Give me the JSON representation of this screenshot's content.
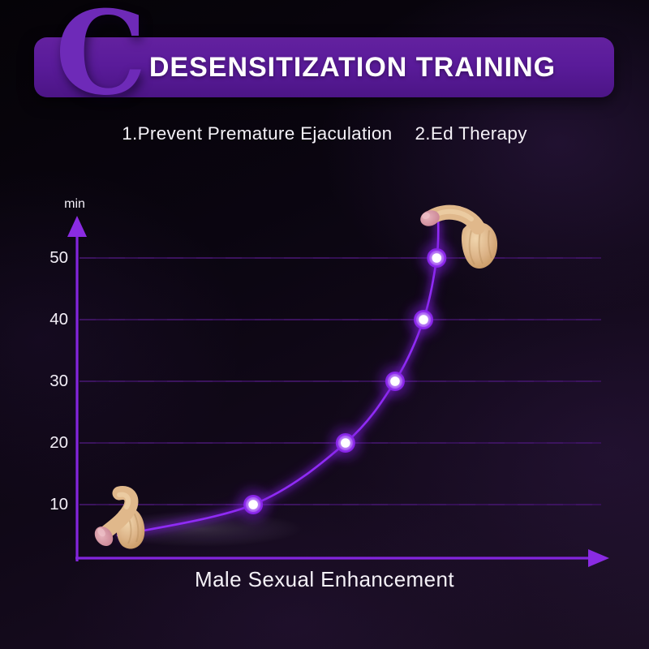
{
  "banner": {
    "title": "DESENSITIZATION TRAINING"
  },
  "subtitle": {
    "item1": "1.Prevent Premature Ejaculation",
    "item2": "2.Ed Therapy"
  },
  "decor": {
    "ribbon_glyph": "C"
  },
  "icons": {
    "product_start": "flaccid-product-photo",
    "product_end": "erect-product-photo"
  },
  "chart_data": {
    "type": "line",
    "title": "DESENSITIZATION TRAINING",
    "xlabel": "Male Sexual Enhancement",
    "ylabel": "min",
    "yticks": [
      10,
      20,
      30,
      40,
      50
    ],
    "ylim": [
      0,
      57
    ],
    "xlim": [
      0,
      1
    ],
    "grid": true,
    "legend": false,
    "x_axis_tick_labels": false,
    "curve_shape": "exponential-rise",
    "curve_start": {
      "x": 0.077,
      "y": 5
    },
    "points": [
      {
        "x": 0.334,
        "y": 10
      },
      {
        "x": 0.509,
        "y": 20
      },
      {
        "x": 0.603,
        "y": 30
      },
      {
        "x": 0.657,
        "y": 40
      },
      {
        "x": 0.682,
        "y": 50
      }
    ],
    "curve_end": {
      "x": 0.685,
      "y": 56
    },
    "colors": {
      "axis": "#8325dd",
      "axis_arrow": "#8a2be2",
      "grid": "#38125a",
      "curve": "#8f2bf5",
      "curve_glow": "#7a1fd6",
      "point_core": "#ffffff",
      "point_disc": "#851fe8",
      "point_halo": "#7a1fd6",
      "banner_bg": "#5a1b9a",
      "text": "#ffffff"
    }
  }
}
